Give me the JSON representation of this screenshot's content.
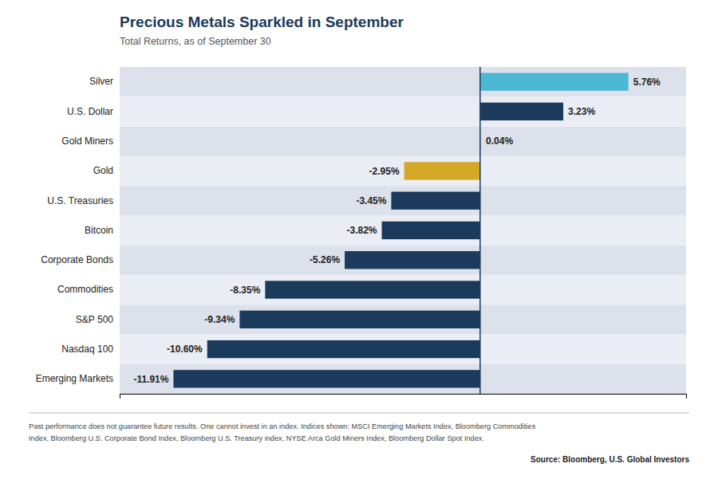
{
  "chart_data": {
    "type": "bar",
    "orientation": "horizontal",
    "title": "Precious Metals Sparkled in September",
    "subtitle": "Total Returns, as of September 30",
    "categories": [
      "Emerging Markets",
      "Nasdaq 100",
      "S&P 500",
      "Commodities",
      "Corporate Bonds",
      "Bitcoin",
      "U.S. Treasuries",
      "Gold",
      "Gold Miners",
      "U.S. Dollar",
      "Silver"
    ],
    "values": [
      -11.91,
      -10.6,
      -9.34,
      -8.35,
      -5.26,
      -3.82,
      -3.45,
      -2.95,
      0.04,
      3.23,
      5.76
    ],
    "value_labels": [
      "-11.91%",
      "-10.60%",
      "-9.34%",
      "-8.35%",
      "-5.26%",
      "-3.82%",
      "-3.45%",
      "-2.95%",
      "0.04%",
      "3.23%",
      "5.76%"
    ],
    "colors": [
      "#1b3a5c",
      "#1b3a5c",
      "#1b3a5c",
      "#1b3a5c",
      "#1b3a5c",
      "#1b3a5c",
      "#1b3a5c",
      "#d4a827",
      "#c8c8c8",
      "#1b3a5c",
      "#4db8d4"
    ],
    "xlim": [
      -14,
      8
    ],
    "data_labels": true,
    "tick_labels": "y",
    "grid": false,
    "footnote": [
      "Past performance does not guarantee future results. One cannot invest in an index. Indices shown: MSCI Emerging Markets Index, Bloomberg Commodities",
      "Index, Bloomberg U.S. Corporate Bond Index, Bloomberg U.S. Treasury index, NYSE Arca Gold Miners Index, Bloomberg Dollar Spot Index."
    ],
    "source": "Source: Bloomberg, U.S. Global Investors"
  }
}
